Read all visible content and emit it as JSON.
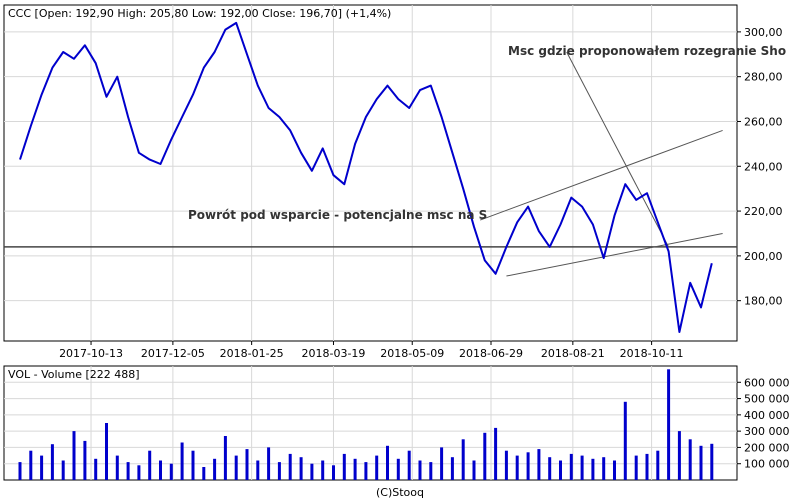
{
  "price_panel": {
    "header": "CCC [Open: 192,90  High: 205,80  Low: 192,00  Close: 196,70] (+1,4%)"
  },
  "volume_panel": {
    "header": "VOL - Volume [222 488]"
  },
  "annotations": {
    "support_text": "Powrót pod wsparcie - potencjalne msc na S",
    "arrow_text": "Msc gdzie proponowałem rozegranie Sho"
  },
  "footer": "(C)Stooq",
  "colors": {
    "price": "#0000cc",
    "volume": "#0000cc",
    "grid": "#d8d8d8",
    "trendline": "#555555",
    "support": "#444444"
  },
  "chart_data": [
    {
      "type": "line",
      "series": [
        {
          "name": "CCC",
          "x": [
            "2017-08-28",
            "2017-09-04",
            "2017-09-11",
            "2017-09-18",
            "2017-09-25",
            "2017-10-02",
            "2017-10-09",
            "2017-10-16",
            "2017-10-23",
            "2017-10-30",
            "2017-11-06",
            "2017-11-13",
            "2017-11-20",
            "2017-11-27",
            "2017-12-04",
            "2017-12-11",
            "2017-12-18",
            "2017-12-25",
            "2018-01-01",
            "2018-01-08",
            "2018-01-15",
            "2018-01-22",
            "2018-01-29",
            "2018-02-05",
            "2018-02-12",
            "2018-02-19",
            "2018-02-26",
            "2018-03-05",
            "2018-03-12",
            "2018-03-19",
            "2018-03-26",
            "2018-04-02",
            "2018-04-09",
            "2018-04-16",
            "2018-04-23",
            "2018-04-30",
            "2018-05-07",
            "2018-05-14",
            "2018-05-21",
            "2018-05-28",
            "2018-06-04",
            "2018-06-11",
            "2018-06-18",
            "2018-06-25",
            "2018-07-02",
            "2018-07-09",
            "2018-07-16",
            "2018-07-23",
            "2018-07-30",
            "2018-08-06",
            "2018-08-13",
            "2018-08-20",
            "2018-08-27",
            "2018-09-03",
            "2018-09-10",
            "2018-09-17",
            "2018-09-24",
            "2018-10-01",
            "2018-10-08",
            "2018-10-15",
            "2018-10-22",
            "2018-10-29",
            "2018-11-05",
            "2018-11-12",
            "2018-11-19"
          ],
          "values": [
            243,
            258,
            272,
            284,
            291,
            288,
            294,
            286,
            271,
            280,
            262,
            246,
            243,
            241,
            252,
            262,
            272,
            284,
            291,
            301,
            304,
            290,
            276,
            266,
            262,
            256,
            246,
            238,
            248,
            236,
            232,
            250,
            262,
            270,
            276,
            270,
            266,
            274,
            276,
            262,
            246,
            230,
            213,
            198,
            192,
            204,
            215,
            222,
            211,
            204,
            214,
            226,
            222,
            214,
            199,
            218,
            232,
            225,
            228,
            215,
            202,
            166,
            188,
            177,
            196.7
          ]
        }
      ],
      "ylim": [
        162,
        312
      ],
      "yticks": [
        "180,00",
        "200,00",
        "220,00",
        "240,00",
        "260,00",
        "280,00",
        "300,00"
      ],
      "ytick_values": [
        180,
        200,
        220,
        240,
        260,
        280,
        300
      ],
      "xticks": [
        "2017-10-13",
        "2017-12-05",
        "2018-01-25",
        "2018-03-19",
        "2018-05-09",
        "2018-06-29",
        "2018-08-21",
        "2018-10-11"
      ],
      "xtick_dates": [
        "2017-10-13",
        "2017-12-05",
        "2018-01-25",
        "2018-03-19",
        "2018-05-09",
        "2018-06-29",
        "2018-08-21",
        "2018-10-11"
      ],
      "support_level": 204,
      "grid": true
    },
    {
      "type": "bar",
      "series": [
        {
          "name": "VOL",
          "x": [
            "2017-08-28",
            "2017-09-04",
            "2017-09-11",
            "2017-09-18",
            "2017-09-25",
            "2017-10-02",
            "2017-10-09",
            "2017-10-16",
            "2017-10-23",
            "2017-10-30",
            "2017-11-06",
            "2017-11-13",
            "2017-11-20",
            "2017-11-27",
            "2017-12-04",
            "2017-12-11",
            "2017-12-18",
            "2017-12-25",
            "2018-01-01",
            "2018-01-08",
            "2018-01-15",
            "2018-01-22",
            "2018-01-29",
            "2018-02-05",
            "2018-02-12",
            "2018-02-19",
            "2018-02-26",
            "2018-03-05",
            "2018-03-12",
            "2018-03-19",
            "2018-03-26",
            "2018-04-02",
            "2018-04-09",
            "2018-04-16",
            "2018-04-23",
            "2018-04-30",
            "2018-05-07",
            "2018-05-14",
            "2018-05-21",
            "2018-05-28",
            "2018-06-04",
            "2018-06-11",
            "2018-06-18",
            "2018-06-25",
            "2018-07-02",
            "2018-07-09",
            "2018-07-16",
            "2018-07-23",
            "2018-07-30",
            "2018-08-06",
            "2018-08-13",
            "2018-08-20",
            "2018-08-27",
            "2018-09-03",
            "2018-09-10",
            "2018-09-17",
            "2018-09-24",
            "2018-10-01",
            "2018-10-08",
            "2018-10-15",
            "2018-10-22",
            "2018-10-29",
            "2018-11-05",
            "2018-11-12",
            "2018-11-19"
          ],
          "values": [
            110000,
            180000,
            150000,
            220000,
            120000,
            300000,
            240000,
            130000,
            350000,
            150000,
            110000,
            90000,
            180000,
            120000,
            100000,
            230000,
            180000,
            80000,
            130000,
            270000,
            150000,
            190000,
            120000,
            200000,
            110000,
            160000,
            140000,
            100000,
            120000,
            90000,
            160000,
            130000,
            110000,
            150000,
            210000,
            130000,
            180000,
            120000,
            110000,
            200000,
            140000,
            250000,
            120000,
            290000,
            320000,
            180000,
            150000,
            170000,
            190000,
            140000,
            120000,
            160000,
            150000,
            130000,
            140000,
            120000,
            480000,
            150000,
            160000,
            180000,
            680000,
            300000,
            250000,
            210000,
            222488
          ]
        }
      ],
      "ylim": [
        0,
        700000
      ],
      "yticks": [
        "100 000",
        "200 000",
        "300 000",
        "400 000",
        "500 000",
        "600 000"
      ],
      "ytick_values": [
        100000,
        200000,
        300000,
        400000,
        500000,
        600000
      ],
      "grid": true
    }
  ]
}
